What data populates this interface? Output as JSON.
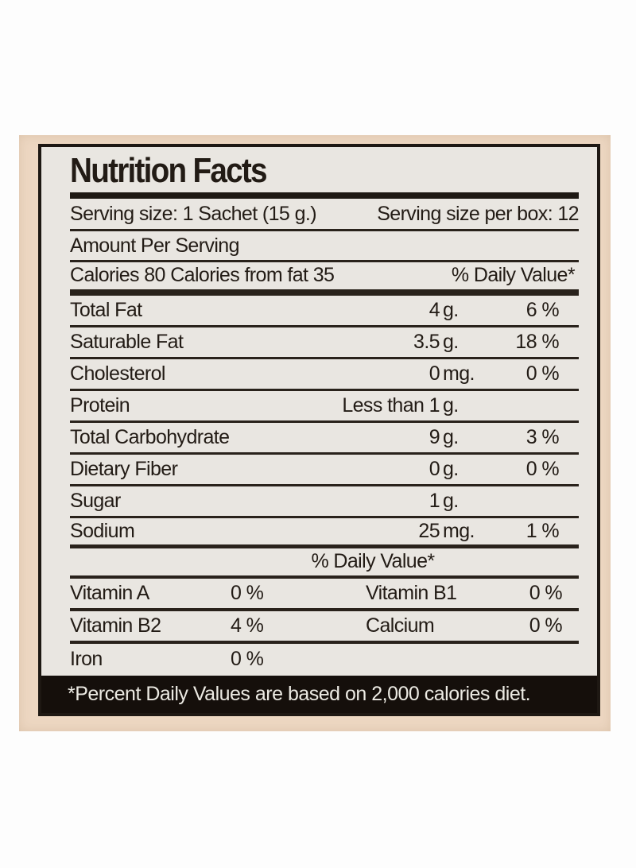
{
  "label": {
    "title": "Nutrition Facts",
    "serving": {
      "size": "Serving size: 1 Sachet (15 g.)",
      "per_box": "Serving size per box: 12"
    },
    "amount_per_serving": "Amount Per Serving",
    "calories_line": "Calories 80 Calories from fat 35",
    "daily_value_header": "% Daily Value*",
    "nutrients": [
      {
        "name": "Total Fat",
        "amount_num": "4",
        "amount_unit": "g.",
        "dv": "6 %"
      },
      {
        "name": "Saturable Fat",
        "amount_num": "3.5",
        "amount_unit": "g.",
        "dv": "18 %"
      },
      {
        "name": "Cholesterol",
        "amount_num": "0",
        "amount_unit": "mg.",
        "dv": "0 %"
      },
      {
        "name": "Protein",
        "amount_num": "Less than 1",
        "amount_unit": "g.",
        "dv": ""
      },
      {
        "name": "Total Carbohydrate",
        "amount_num": "9",
        "amount_unit": "g.",
        "dv": "3 %"
      },
      {
        "name": "Dietary Fiber",
        "amount_num": "0",
        "amount_unit": "g.",
        "dv": "0 %"
      },
      {
        "name": "Sugar",
        "amount_num": "1",
        "amount_unit": "g.",
        "dv": ""
      },
      {
        "name": "Sodium",
        "amount_num": "25",
        "amount_unit": "mg.",
        "dv": "1 %"
      }
    ],
    "daily_value_header_mid": "% Daily Value*",
    "micronutrients": [
      {
        "left_name": "Vitamin A",
        "left_value": "0 %",
        "right_name": "Vitamin B1",
        "right_value": "0 %"
      },
      {
        "left_name": "Vitamin B2",
        "left_value": "4 %",
        "right_name": "Calcium",
        "right_value": "0 %"
      },
      {
        "left_name": "Iron",
        "left_value": "0 %",
        "right_name": "",
        "right_value": ""
      }
    ],
    "footnote": "*Percent Daily Values are based on 2,000 calories diet.",
    "colors": {
      "page_background": "#ffffff",
      "panel_background": "#edd7c2",
      "label_background": "#e9e6e1",
      "ink": "#1e1813",
      "footnote_background": "#150f0b",
      "footnote_text": "#eceae3"
    }
  }
}
